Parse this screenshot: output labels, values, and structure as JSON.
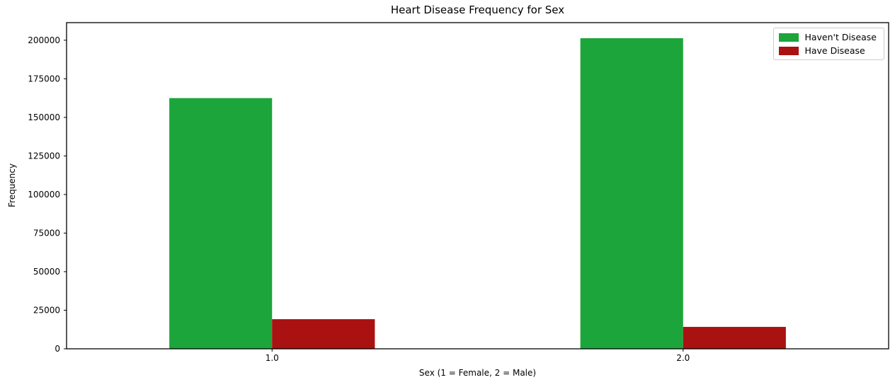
{
  "chart_data": {
    "type": "bar",
    "title": "Heart Disease Frequency for Sex",
    "xlabel": "Sex (1 = Female, 2 = Male)",
    "ylabel": "Frequency",
    "categories": [
      "1.0",
      "2.0"
    ],
    "series": [
      {
        "name": "Haven't Disease",
        "color": "#1CA53B",
        "values": [
          162500,
          201300
        ]
      },
      {
        "name": "Have Disease",
        "color": "#AA1111",
        "values": [
          19200,
          14200
        ]
      }
    ],
    "ylim": [
      0,
      211400
    ],
    "yticks": [
      0,
      25000,
      50000,
      75000,
      100000,
      125000,
      150000,
      175000,
      200000
    ],
    "grid": false,
    "legend_position": "upper right",
    "background_color": "#ffffff",
    "spine_color": "#000000"
  }
}
